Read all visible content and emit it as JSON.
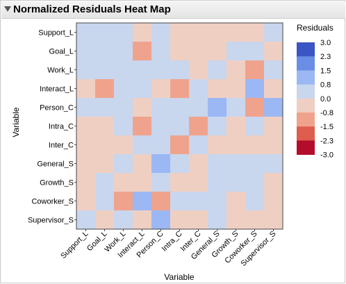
{
  "panel": {
    "title": "Normalized Residuals Heat Map",
    "collapse_icon": "disclosure-triangle-down-icon"
  },
  "chart_data": {
    "type": "heatmap",
    "title": "Normalized Residuals Heat Map",
    "xlabel": "Variable",
    "ylabel": "Variable",
    "x_categories": [
      "Support_L",
      "Goal_L",
      "Work_L",
      "Interact_L",
      "Person_C",
      "Intra_C",
      "Inter_C",
      "General_S",
      "Growth_S",
      "Coworker_S",
      "Supervisor_S"
    ],
    "y_categories": [
      "Support_L",
      "Goal_L",
      "Work_L",
      "Interact_L",
      "Person_C",
      "Intra_C",
      "Inter_C",
      "General_S",
      "Growth_S",
      "Coworker_S",
      "Supervisor_S"
    ],
    "values": [
      [
        0.5,
        0.5,
        0.5,
        -0.6,
        0.5,
        -0.6,
        -0.6,
        -0.6,
        -0.6,
        -0.6,
        0.5
      ],
      [
        0.5,
        0.5,
        0.5,
        -1.3,
        0.5,
        -0.6,
        -0.6,
        -0.6,
        0.5,
        0.5,
        -0.6
      ],
      [
        0.5,
        0.5,
        0.5,
        0.5,
        0.5,
        0.5,
        -0.6,
        0.5,
        -0.6,
        -1.3,
        0.5
      ],
      [
        -0.6,
        -1.3,
        0.5,
        0.5,
        -0.6,
        -1.3,
        0.5,
        -0.6,
        -0.6,
        1.1,
        -0.6
      ],
      [
        0.5,
        0.5,
        0.5,
        -0.6,
        0.5,
        0.5,
        0.5,
        1.1,
        0.5,
        -1.3,
        1.1
      ],
      [
        -0.6,
        -0.6,
        0.5,
        -1.3,
        0.5,
        0.5,
        -1.3,
        0.5,
        -0.6,
        0.5,
        -0.6
      ],
      [
        -0.6,
        -0.6,
        -0.6,
        0.5,
        0.5,
        -1.3,
        0.5,
        -0.6,
        -0.6,
        -0.6,
        -0.6
      ],
      [
        -0.6,
        -0.6,
        0.5,
        -0.6,
        1.1,
        0.5,
        -0.6,
        0.5,
        0.5,
        0.5,
        0.5
      ],
      [
        -0.6,
        0.5,
        -0.6,
        -0.6,
        0.5,
        -0.6,
        -0.6,
        0.5,
        0.5,
        0.5,
        -0.6
      ],
      [
        -0.6,
        0.5,
        -1.3,
        1.1,
        -1.3,
        0.5,
        0.5,
        0.5,
        -0.6,
        0.5,
        -0.6
      ],
      [
        0.5,
        -0.6,
        0.5,
        -0.6,
        1.1,
        -0.6,
        -0.6,
        0.5,
        -0.6,
        -0.6,
        -0.6
      ]
    ],
    "legend": {
      "title": "Residuals",
      "ticks": [
        "3.0",
        "2.3",
        "1.5",
        "0.8",
        "0.0",
        "-0.8",
        "-1.5",
        "-2.3",
        "-3.0"
      ],
      "swatches": [
        {
          "from": 2.3,
          "to": 3.0,
          "color": "#3a55c4"
        },
        {
          "from": 1.5,
          "to": 2.3,
          "color": "#6a8ee6"
        },
        {
          "from": 0.8,
          "to": 1.5,
          "color": "#9bb8f4"
        },
        {
          "from": 0.0,
          "to": 0.8,
          "color": "#c8d6ee"
        },
        {
          "from": -0.8,
          "to": 0.0,
          "color": "#f0cfc3"
        },
        {
          "from": -1.5,
          "to": -0.8,
          "color": "#f0a38c"
        },
        {
          "from": -2.3,
          "to": -1.5,
          "color": "#de5d4d"
        },
        {
          "from": -3.0,
          "to": -2.3,
          "color": "#b40d2b"
        }
      ],
      "placement": "right"
    },
    "grid": false
  }
}
